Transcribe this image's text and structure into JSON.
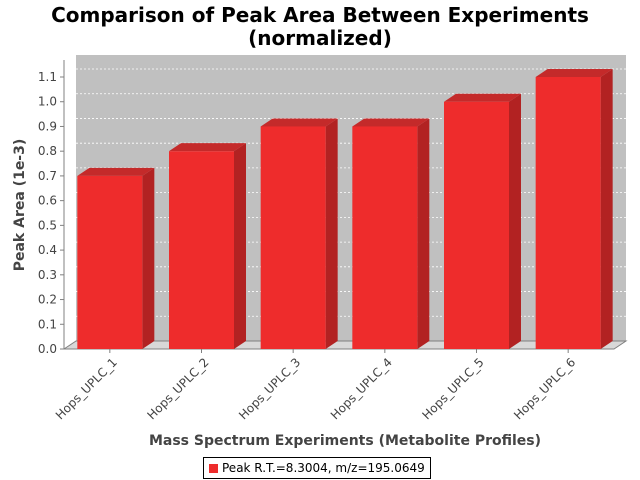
{
  "chart_data": {
    "type": "bar",
    "title": "Comparison of Peak Area Between Experiments",
    "subtitle": "(normalized)",
    "xlabel": "Mass Spectrum Experiments (Metabolite Profiles)",
    "ylabel": "Peak Area (1e-3)",
    "categories": [
      "Hops_UPLC_1",
      "Hops_UPLC_2",
      "Hops_UPLC_3",
      "Hops_UPLC_4",
      "Hops_UPLC_5",
      "Hops_UPLC_6"
    ],
    "series": [
      {
        "name": "Peak R.T.=8.3004, m/z=195.0649",
        "values": [
          0.7,
          0.8,
          0.9,
          0.9,
          1.0,
          1.1
        ],
        "color": "#ee2c2c"
      }
    ],
    "ylim": [
      0,
      1.1
    ],
    "yticks": [
      "0.0",
      "0.1",
      "0.2",
      "0.3",
      "0.4",
      "0.5",
      "0.6",
      "0.7",
      "0.8",
      "0.9",
      "1.0",
      "1.1"
    ],
    "grid": true,
    "legend_position": "bottom",
    "plot_background": "#c0c0c0",
    "bar_color": "#ee2c2c",
    "bar_side_color": "#b22222",
    "bar_top_color": "#c42a2a"
  }
}
